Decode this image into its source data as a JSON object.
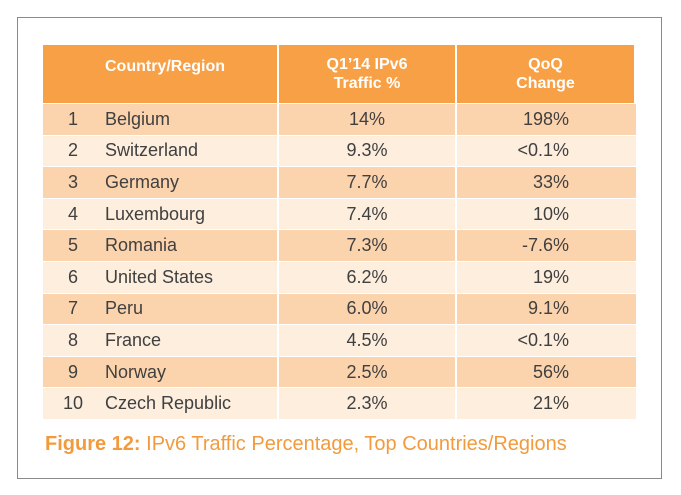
{
  "table": {
    "headers": [
      "Country/Region",
      "Q1’14 IPv6\nTraffic %",
      "QoQ\nChange"
    ],
    "rows": [
      {
        "rank": "1",
        "country": "Belgium",
        "traffic": "14%",
        "change": "198%"
      },
      {
        "rank": "2",
        "country": "Switzerland",
        "traffic": "9.3%",
        "change": "<0.1%"
      },
      {
        "rank": "3",
        "country": "Germany",
        "traffic": "7.7%",
        "change": "33%"
      },
      {
        "rank": "4",
        "country": "Luxembourg",
        "traffic": "7.4%",
        "change": "10%"
      },
      {
        "rank": "5",
        "country": "Romania",
        "traffic": "7.3%",
        "change": "-7.6%"
      },
      {
        "rank": "6",
        "country": "United States",
        "traffic": "6.2%",
        "change": "19%"
      },
      {
        "rank": "7",
        "country": "Peru",
        "traffic": "6.0%",
        "change": "9.1%"
      },
      {
        "rank": "8",
        "country": "France",
        "traffic": "4.5%",
        "change": "<0.1%"
      },
      {
        "rank": "9",
        "country": "Norway",
        "traffic": "2.5%",
        "change": "56%"
      },
      {
        "rank": "10",
        "country": "Czech Republic",
        "traffic": "2.3%",
        "change": "21%"
      }
    ]
  },
  "caption": {
    "label": "Figure 12:",
    "text": " IPv6 Traffic Percentage, Top Countries/Regions"
  },
  "colors": {
    "header": "#f8a046",
    "row_odd": "#fbd4ae",
    "row_even": "#fdeede",
    "caption": "#f39a3c"
  }
}
